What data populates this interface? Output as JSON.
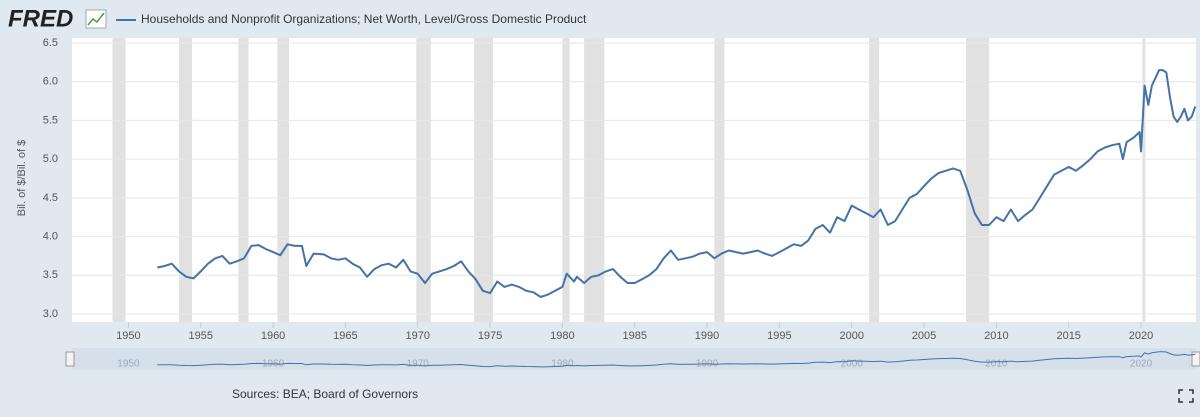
{
  "chart_data": {
    "type": "line",
    "logo": "FRED",
    "y_label": "Bil. of $/Bil. of $",
    "source": "Sources: BEA; Board of Governors",
    "x": [
      1952,
      1952.5,
      1953,
      1953.5,
      1954,
      1954.5,
      1955,
      1955.5,
      1956,
      1956.5,
      1957,
      1957.5,
      1958,
      1958.5,
      1959,
      1959.5,
      1960,
      1960.5,
      1961,
      1961.5,
      1962,
      1962.3,
      1962.8,
      1963.5,
      1964,
      1964.5,
      1965,
      1965.5,
      1966,
      1966.5,
      1967,
      1967.5,
      1968,
      1968.5,
      1969,
      1969.5,
      1970,
      1970.5,
      1971,
      1971.5,
      1972,
      1972.5,
      1973,
      1973.5,
      1974,
      1974.5,
      1975,
      1975.5,
      1976,
      1976.5,
      1977,
      1977.5,
      1978,
      1978.5,
      1979,
      1979.5,
      1980,
      1980.3,
      1980.8,
      1981,
      1981.5,
      1982,
      1982.5,
      1983,
      1983.5,
      1984,
      1984.5,
      1985,
      1985.5,
      1986,
      1986.5,
      1987,
      1987.5,
      1988,
      1988.5,
      1989,
      1989.5,
      1990,
      1990.5,
      1991,
      1991.5,
      1992,
      1992.5,
      1993,
      1993.5,
      1994,
      1994.5,
      1995,
      1995.5,
      1996,
      1996.5,
      1997,
      1997.5,
      1998,
      1998.5,
      1999,
      1999.5,
      2000,
      2000.5,
      2001,
      2001.5,
      2002,
      2002.5,
      2003,
      2003.5,
      2004,
      2004.5,
      2005,
      2005.5,
      2006,
      2006.5,
      2007,
      2007.5,
      2008,
      2008.5,
      2009,
      2009.5,
      2010,
      2010.5,
      2011,
      2011.5,
      2012,
      2012.5,
      2013,
      2013.5,
      2014,
      2014.5,
      2015,
      2015.5,
      2016,
      2016.5,
      2017,
      2017.5,
      2018,
      2018.5,
      2018.75,
      2019,
      2019.5,
      2019.9,
      2020,
      2020.25,
      2020.5,
      2020.75,
      2021,
      2021.25,
      2021.5,
      2021.75,
      2022,
      2022.25,
      2022.5,
      2022.75,
      2023,
      2023.25,
      2023.5,
      2023.75
    ],
    "series": [
      {
        "name": "Households and Nonprofit Organizations; Net Worth, Level/Gross Domestic Product",
        "color": "#4572a7",
        "values": [
          3.6,
          3.62,
          3.65,
          3.55,
          3.48,
          3.46,
          3.55,
          3.65,
          3.72,
          3.75,
          3.65,
          3.68,
          3.72,
          3.88,
          3.89,
          3.84,
          3.8,
          3.76,
          3.9,
          3.88,
          3.88,
          3.62,
          3.78,
          3.77,
          3.72,
          3.7,
          3.72,
          3.65,
          3.6,
          3.48,
          3.58,
          3.63,
          3.65,
          3.6,
          3.7,
          3.55,
          3.52,
          3.4,
          3.52,
          3.55,
          3.58,
          3.62,
          3.68,
          3.55,
          3.45,
          3.3,
          3.27,
          3.42,
          3.35,
          3.38,
          3.35,
          3.3,
          3.28,
          3.22,
          3.25,
          3.3,
          3.35,
          3.52,
          3.42,
          3.48,
          3.4,
          3.48,
          3.5,
          3.55,
          3.58,
          3.48,
          3.4,
          3.4,
          3.45,
          3.5,
          3.58,
          3.72,
          3.82,
          3.7,
          3.72,
          3.74,
          3.78,
          3.8,
          3.72,
          3.78,
          3.82,
          3.8,
          3.78,
          3.8,
          3.82,
          3.78,
          3.75,
          3.8,
          3.85,
          3.9,
          3.88,
          3.95,
          4.1,
          4.15,
          4.05,
          4.25,
          4.2,
          4.4,
          4.35,
          4.3,
          4.25,
          4.35,
          4.15,
          4.2,
          4.35,
          4.5,
          4.55,
          4.65,
          4.75,
          4.82,
          4.85,
          4.88,
          4.85,
          4.6,
          4.3,
          4.15,
          4.15,
          4.25,
          4.2,
          4.35,
          4.2,
          4.28,
          4.35,
          4.5,
          4.65,
          4.8,
          4.85,
          4.9,
          4.85,
          4.92,
          5.0,
          5.1,
          5.15,
          5.18,
          5.2,
          5.0,
          5.22,
          5.28,
          5.35,
          5.1,
          5.95,
          5.7,
          5.95,
          6.05,
          6.15,
          6.15,
          6.12,
          5.8,
          5.55,
          5.48,
          5.55,
          5.65,
          5.5,
          5.55,
          5.68
        ]
      }
    ],
    "recessions": [
      [
        1948.9,
        1949.8
      ],
      [
        1953.5,
        1954.4
      ],
      [
        1957.6,
        1958.3
      ],
      [
        1960.3,
        1961.1
      ],
      [
        1969.9,
        1970.9
      ],
      [
        1973.9,
        1975.2
      ],
      [
        1980.0,
        1980.5
      ],
      [
        1981.5,
        1982.9
      ],
      [
        1990.5,
        1991.2
      ],
      [
        2001.2,
        2001.9
      ],
      [
        2007.9,
        2009.5
      ],
      [
        2020.1,
        2020.3
      ]
    ],
    "xlim": [
      1946.1,
      2023.8
    ],
    "ylim": [
      3.0,
      6.5
    ],
    "xticks": [
      1950,
      1955,
      1960,
      1965,
      1970,
      1975,
      1980,
      1985,
      1990,
      1995,
      2000,
      2005,
      2010,
      2015,
      2020
    ],
    "yticks": [
      {
        "value": 3,
        "label": "3.0"
      },
      3.5,
      {
        "value": 4,
        "label": "4.0"
      },
      4.5,
      {
        "value": 5,
        "label": "5.0"
      },
      5.5,
      {
        "value": 6,
        "label": "6.0"
      },
      6.5
    ],
    "grid": true,
    "navigator_ticks": [
      1950,
      1960,
      1970,
      1980,
      1990,
      2000,
      2010,
      2020
    ]
  }
}
